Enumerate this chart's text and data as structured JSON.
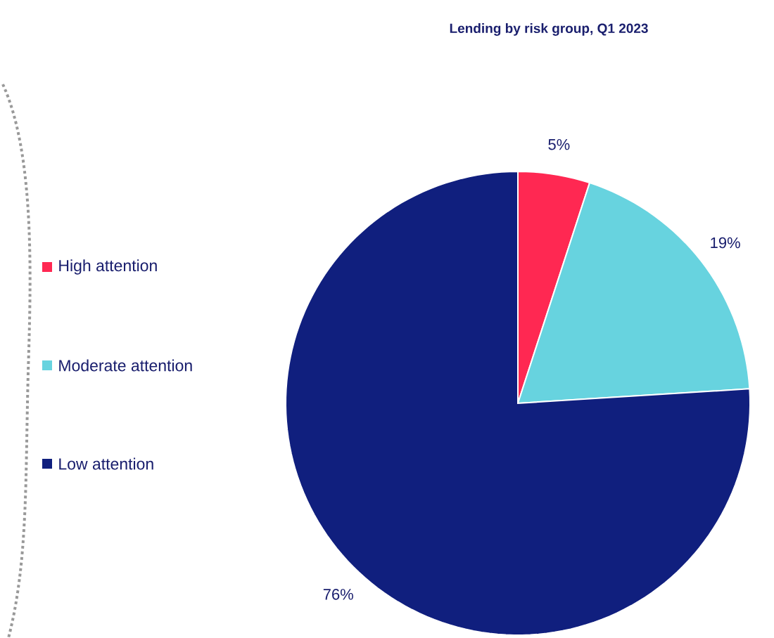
{
  "chart_data": {
    "type": "pie",
    "title": "Lending by risk group, Q1 2023",
    "categories": [
      "High attention",
      "Moderate attention",
      "Low attention"
    ],
    "values": [
      5,
      19,
      76
    ],
    "colors": [
      "#ff2852",
      "#67d3df",
      "#101f7e"
    ],
    "value_labels": [
      "5%",
      "19%",
      "76%"
    ],
    "legend": "left"
  }
}
